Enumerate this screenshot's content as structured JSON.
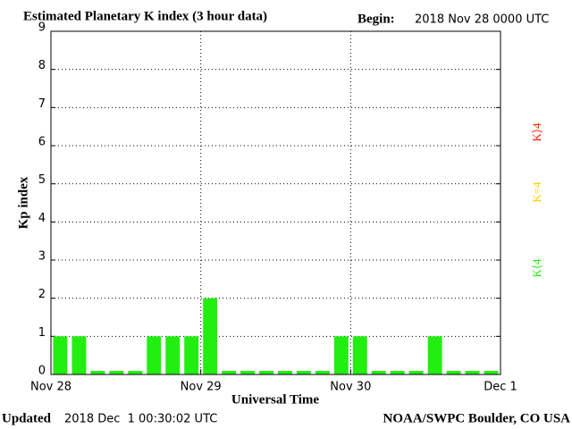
{
  "chart_data": {
    "type": "bar",
    "title": "Estimated Planetary K index (3 hour data)",
    "begin_label": "Begin:",
    "begin": "2018 Nov 28 0000 UTC",
    "y_label": "Kp index",
    "x_label": "Universal Time",
    "updated_label": "Updated",
    "updated": "2018 Dec  1 00:30:02 UTC",
    "source": "NOAA/SWPC Boulder, CO USA",
    "categories": [
      null,
      null,
      null,
      null,
      null,
      null,
      null,
      null,
      null,
      null,
      null,
      null,
      null,
      null,
      null,
      null,
      null,
      null,
      null,
      null,
      null,
      null,
      null,
      null
    ],
    "values": [
      1,
      1,
      0,
      0,
      0,
      1,
      1,
      1,
      2,
      0,
      0,
      0,
      0,
      0,
      0,
      1,
      1,
      0,
      0,
      0,
      1,
      0,
      0,
      0
    ],
    "color": "#22ee11",
    "ylim": [
      0,
      9
    ],
    "yticks": [
      0,
      1,
      2,
      3,
      4,
      5,
      6,
      7,
      8,
      9
    ],
    "xlim": [
      0,
      24
    ],
    "xticks": [
      {
        "value": 0,
        "label": "Nov 28"
      },
      {
        "value": 8,
        "label": "Nov 29"
      },
      {
        "value": 16,
        "label": "Nov 30"
      },
      {
        "value": 24,
        "label": "Dec 1"
      }
    ],
    "grid": true,
    "legend": [
      {
        "name": "K⟨4",
        "color": "#22ee11"
      },
      {
        "name": "K=4",
        "color": "#ffcc00"
      },
      {
        "name": "K⟩4",
        "color": "#ff2200"
      }
    ]
  }
}
